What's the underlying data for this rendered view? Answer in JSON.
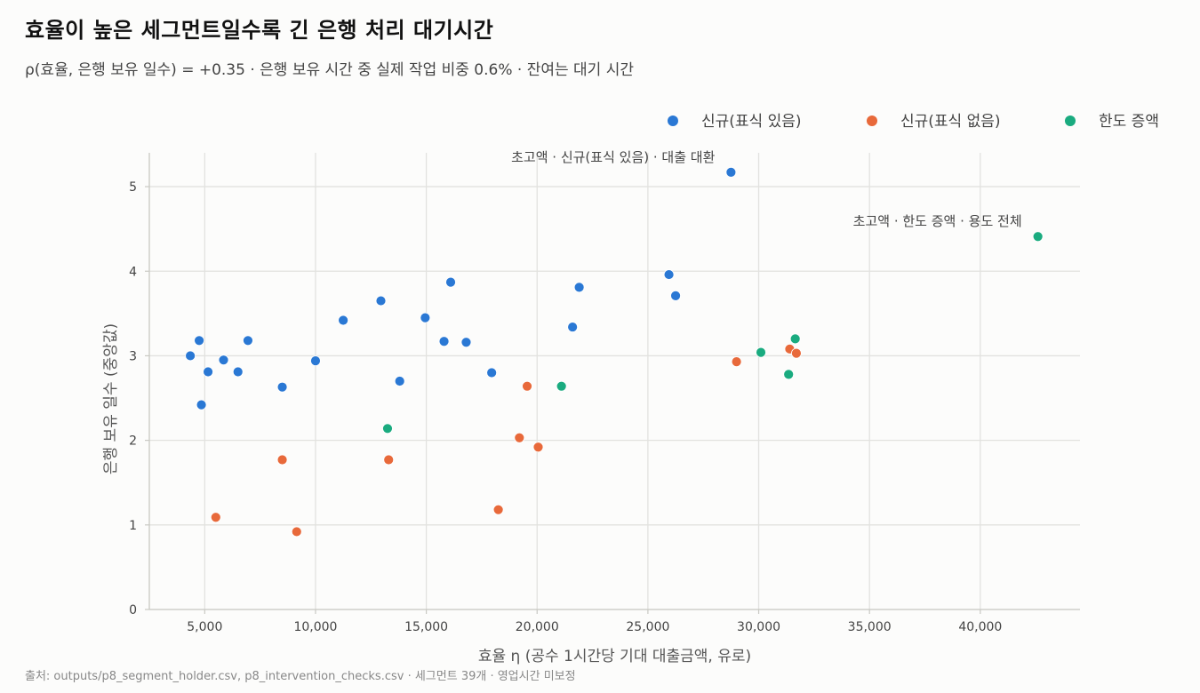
{
  "title": "효율이 높은 세그먼트일수록 긴 은행 처리 대기시간",
  "subtitle": "ρ(효율, 은행 보유 일수) = +0.35 · 은행 보유 시간 중 실제 작업 비중 0.6% · 잔여는 대기 시간",
  "source": "출처: outputs/p8_segment_holder.csv, p8_intervention_checks.csv · 세그먼트 39개 · 영업시간 미보정",
  "colors": {
    "background": "#fcfcfb",
    "grid": "#e2e2df",
    "axis": "#c9c9c3"
  },
  "chart_data": {
    "type": "scatter",
    "xlabel": "효율 η (공수 1시간당 기대 대출금액, 유로)",
    "ylabel": "은행 보유 일수 (중앙값)",
    "xlim": [
      2500,
      44500
    ],
    "ylim": [
      0,
      5.4
    ],
    "x_ticks": [
      5000,
      10000,
      15000,
      20000,
      25000,
      30000,
      35000,
      40000
    ],
    "x_tick_labels": [
      "5,000",
      "10,000",
      "15,000",
      "20,000",
      "25,000",
      "30,000",
      "35,000",
      "40,000"
    ],
    "y_ticks": [
      0,
      1,
      2,
      3,
      4,
      5
    ],
    "y_tick_labels": [
      "0",
      "1",
      "2",
      "3",
      "4",
      "5"
    ],
    "grid": true,
    "legend_position": "top-right",
    "series": [
      {
        "name": "신규(표식 있음)",
        "color": "#2a78d4",
        "points": [
          [
            4350,
            3.0
          ],
          [
            4750,
            3.18
          ],
          [
            4850,
            2.42
          ],
          [
            5150,
            2.81
          ],
          [
            5850,
            2.95
          ],
          [
            6500,
            2.81
          ],
          [
            6950,
            3.18
          ],
          [
            8500,
            2.63
          ],
          [
            10000,
            2.94
          ],
          [
            11250,
            3.42
          ],
          [
            12950,
            3.65
          ],
          [
            13800,
            2.7
          ],
          [
            14950,
            3.45
          ],
          [
            15800,
            3.17
          ],
          [
            16100,
            3.87
          ],
          [
            16800,
            3.16
          ],
          [
            17950,
            2.8
          ],
          [
            21600,
            3.34
          ],
          [
            21900,
            3.81
          ],
          [
            25950,
            3.96
          ],
          [
            26250,
            3.71
          ],
          [
            28750,
            5.17
          ]
        ]
      },
      {
        "name": "신규(표식 없음)",
        "color": "#e8693a",
        "points": [
          [
            5500,
            1.09
          ],
          [
            8500,
            1.77
          ],
          [
            9150,
            0.92
          ],
          [
            13300,
            1.77
          ],
          [
            18250,
            1.18
          ],
          [
            19200,
            2.03
          ],
          [
            19550,
            2.64
          ],
          [
            20050,
            1.92
          ],
          [
            29000,
            2.93
          ],
          [
            31400,
            3.08
          ],
          [
            31700,
            3.03
          ]
        ]
      },
      {
        "name": "한도 증액",
        "color": "#1aab7f",
        "points": [
          [
            13250,
            2.14
          ],
          [
            21100,
            2.64
          ],
          [
            30100,
            3.04
          ],
          [
            31350,
            2.78
          ],
          [
            31650,
            3.2
          ],
          [
            42600,
            4.41
          ]
        ]
      }
    ],
    "annotations": [
      {
        "text": "초고액 · 신규(표식 있음) · 대출 대환",
        "x": 28750,
        "y": 5.17,
        "anchor": "end"
      },
      {
        "text": "초고액 · 한도 증액 · 용도 전체",
        "x": 42600,
        "y": 4.41,
        "anchor": "end"
      }
    ]
  }
}
